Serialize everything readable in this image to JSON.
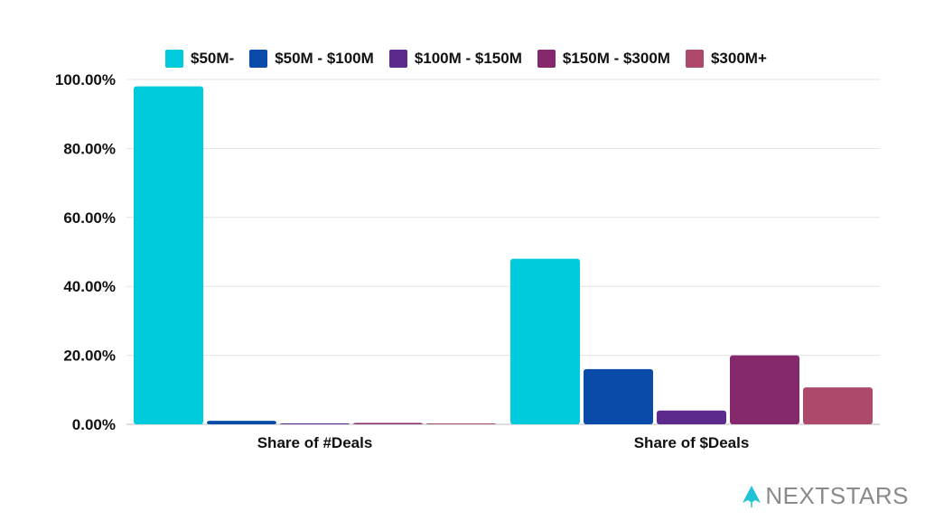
{
  "chart_data": {
    "type": "bar",
    "categories": [
      "Share of #Deals",
      "Share of $Deals"
    ],
    "series": [
      {
        "name": "$50M-",
        "color": "#00CBDD",
        "values": [
          98.0,
          48.0
        ]
      },
      {
        "name": "$50M - $100M",
        "color": "#0A4BAA",
        "values": [
          1.0,
          16.0
        ]
      },
      {
        "name": "$100M - $150M",
        "color": "#5B2A8C",
        "values": [
          0.1,
          4.0
        ]
      },
      {
        "name": "$150M - $300M",
        "color": "#86296C",
        "values": [
          0.4,
          20.0
        ]
      },
      {
        "name": "$300M+",
        "color": "#AD4A6C",
        "values": [
          0.1,
          10.7
        ]
      }
    ],
    "yticks": [
      "0.00%",
      "20.00%",
      "40.00%",
      "60.00%",
      "80.00%",
      "100.00%"
    ],
    "ylim": [
      0,
      100
    ],
    "grid": true,
    "legend_position": "top"
  },
  "brand": {
    "name": "NEXTSTARS",
    "icon": "rocket-icon"
  }
}
